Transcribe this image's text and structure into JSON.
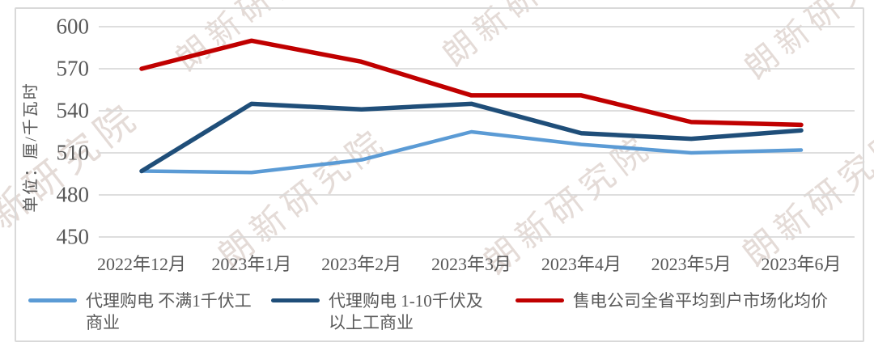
{
  "chart_data": {
    "type": "line",
    "title": "",
    "xlabel": "",
    "ylabel": "单位：厘/千瓦时",
    "ylim": [
      450,
      600
    ],
    "yticks": [
      600,
      570,
      540,
      510,
      480,
      450
    ],
    "grid": true,
    "legend_position": "bottom",
    "categories": [
      "2022年12月",
      "2023年1月",
      "2023年2月",
      "2023年3月",
      "2023年4月",
      "2023年5月",
      "2023年6月"
    ],
    "series": [
      {
        "name": "代理购电 不满1千伏工商业",
        "color": "#5B9BD5",
        "values": [
          497,
          496,
          505,
          525,
          516,
          510,
          512
        ]
      },
      {
        "name": "代理购电 1-10千伏及以上工商业",
        "color": "#1F4E79",
        "values": [
          497,
          545,
          541,
          545,
          524,
          520,
          526
        ]
      },
      {
        "name": "售电公司全省平均到户市场化均价",
        "color": "#C00000",
        "values": [
          570,
          590,
          575,
          551,
          551,
          532,
          530
        ]
      }
    ]
  },
  "legend": {
    "items": [
      {
        "lines": [
          "代理购电 不满1千伏工",
          "商业"
        ],
        "color": "#5B9BD5"
      },
      {
        "lines": [
          "代理购电 1-10千伏及",
          "以上工商业"
        ],
        "color": "#1F4E79"
      },
      {
        "lines": [
          "售电公司全省平均到户市场化均价"
        ],
        "color": "#C00000"
      }
    ]
  },
  "watermark": {
    "text": "朗新研究院"
  },
  "colors": {
    "axis_text": "#595959",
    "gridline": "#D9D9D9",
    "frame_border": "#D9D9D9",
    "background": "#FFFFFF",
    "watermark": "rgba(201,183,176,0.5)"
  }
}
